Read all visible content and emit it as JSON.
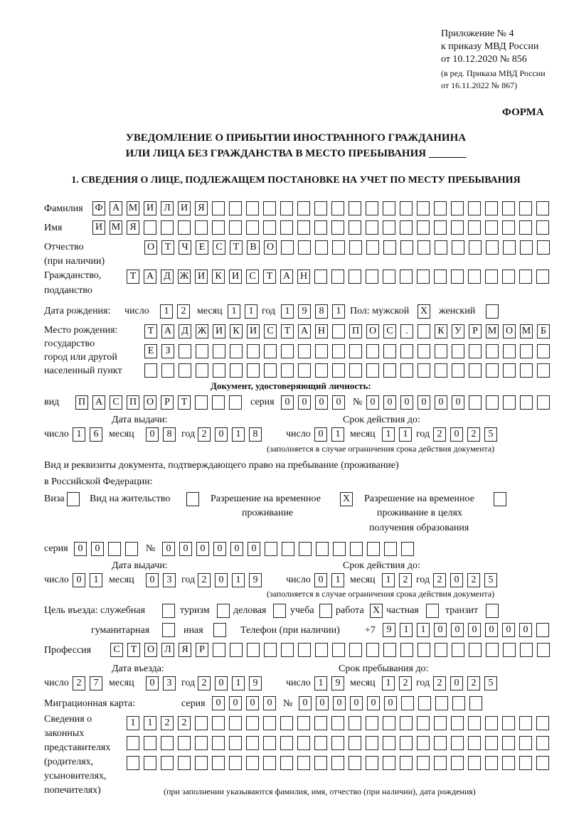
{
  "header": {
    "appendix": "Приложение № 4",
    "order": "к приказу МВД России",
    "order_date": "от 10.12.2020 № 856",
    "edition": "(в ред. Приказа МВД России",
    "edition_date": "от 16.11.2022 № 867)",
    "form": "ФОРМА",
    "title1": "УВЕДОМЛЕНИЕ О ПРИБЫТИИ ИНОСТРАННОГО ГРАЖДАНИНА",
    "title2": "ИЛИ ЛИЦА БЕЗ ГРАЖДАНСТВА В МЕСТО ПРЕБЫВАНИЯ _______",
    "section1": "1. СВЕДЕНИЯ О ЛИЦЕ, ПОДЛЕЖАЩЕМ ПОСТАНОВКЕ НА УЧЕТ ПО МЕСТУ ПРЕБЫВАНИЯ"
  },
  "labels": {
    "surname": "Фамилия",
    "name": "Имя",
    "patronymic": "Отчество",
    "patronymic2": "(при наличии)",
    "citizenship": "Гражданство,",
    "citizenship2": "подданство",
    "birth_date": "Дата рождения:",
    "day": "число",
    "month": "месяц",
    "year": "год",
    "sex_male": "Пол: мужской",
    "sex_female": "женский",
    "birth_place1": "Место рождения:",
    "birth_place2": "государство",
    "birth_place3": "город или другой",
    "birth_place4": "населенный пункт",
    "id_doc": "Документ, удостоверяющий личность:",
    "kind": "вид",
    "series": "серия",
    "number": "№",
    "issue_date": "Дата выдачи:",
    "valid_until": "Срок действия до:",
    "valid_note": "(заполняется в случае ограничения срока действия документа)",
    "stay_doc1": "Вид и реквизиты документа, подтверждающего право на пребывание (проживание)",
    "stay_doc2": "в Российской Федерации:",
    "visa": "Виза",
    "residence": "Вид на жительство",
    "temp1": "Разрешение на временное",
    "temp2": "проживание",
    "edu1": "Разрешение на временное",
    "edu2": "проживание в целях",
    "edu3": "получения образования",
    "purpose": "Цель въезда: служебная",
    "tourism": "туризм",
    "business": "деловая",
    "study": "учеба",
    "work": "работа",
    "private": "частная",
    "transit": "транзит",
    "humanitarian": "гуманитарная",
    "other": "иная",
    "phone": "Телефон (при наличии)",
    "phone_prefix": "+7",
    "profession": "Профессия",
    "entry_date": "Дата въезда:",
    "stay_until": "Срок пребывания до:",
    "migration_card": "Миграционная карта:",
    "reps1": "Сведения о",
    "reps2": "законных",
    "reps3": "представителях",
    "reps4": "(родителях,",
    "reps5": "усыновителях,",
    "reps6": "попечителях)",
    "reps_note": "(при заполнении указываются фамилия, имя, отчество (при наличии), дата рождения)"
  },
  "fields": {
    "surname": [
      "Ф",
      "А",
      "М",
      "И",
      "Л",
      "И",
      "Я",
      "",
      "",
      "",
      "",
      "",
      "",
      "",
      "",
      "",
      "",
      "",
      "",
      "",
      "",
      "",
      "",
      "",
      "",
      "",
      ""
    ],
    "name": [
      "И",
      "М",
      "Я",
      "",
      "",
      "",
      "",
      "",
      "",
      "",
      "",
      "",
      "",
      "",
      "",
      "",
      "",
      "",
      "",
      "",
      "",
      "",
      "",
      "",
      "",
      "",
      ""
    ],
    "patronymic": [
      "О",
      "Т",
      "Ч",
      "Е",
      "С",
      "Т",
      "В",
      "О",
      "",
      "",
      "",
      "",
      "",
      "",
      "",
      "",
      "",
      "",
      "",
      "",
      "",
      "",
      "",
      ""
    ],
    "citizenship": [
      "Т",
      "А",
      "Д",
      "Ж",
      "И",
      "К",
      "И",
      "С",
      "Т",
      "А",
      "Н",
      "",
      "",
      "",
      "",
      "",
      "",
      "",
      "",
      "",
      "",
      "",
      "",
      "",
      ""
    ],
    "birth_day": [
      "1",
      "2"
    ],
    "birth_month": [
      "1",
      "1"
    ],
    "birth_year": [
      "1",
      "9",
      "8",
      "1"
    ],
    "sex_male": [
      "X"
    ],
    "sex_female": [
      ""
    ],
    "birth_place_1": [
      "Т",
      "А",
      "Д",
      "Ж",
      "И",
      "К",
      "И",
      "С",
      "Т",
      "А",
      "Н",
      "",
      "П",
      "О",
      "С",
      ".",
      "",
      "К",
      "У",
      "Р",
      "М",
      "О",
      "М",
      "Б"
    ],
    "birth_place_2": [
      "Е",
      "З",
      "",
      "",
      "",
      "",
      "",
      "",
      "",
      "",
      "",
      "",
      "",
      "",
      "",
      "",
      "",
      "",
      "",
      "",
      "",
      "",
      "",
      ""
    ],
    "birth_place_3": [
      "",
      "",
      "",
      "",
      "",
      "",
      "",
      "",
      "",
      "",
      "",
      "",
      "",
      "",
      "",
      "",
      "",
      "",
      "",
      "",
      "",
      "",
      "",
      ""
    ],
    "id_kind": [
      "П",
      "А",
      "С",
      "П",
      "О",
      "Р",
      "Т",
      "",
      "",
      ""
    ],
    "id_series": [
      "0",
      "0",
      "0",
      "0"
    ],
    "id_number": [
      "0",
      "0",
      "0",
      "0",
      "0",
      "0",
      "",
      "",
      "",
      "",
      ""
    ],
    "id_issue_day": [
      "1",
      "6"
    ],
    "id_issue_month": [
      "0",
      "8"
    ],
    "id_issue_year": [
      "2",
      "0",
      "1",
      "8"
    ],
    "id_valid_day": [
      "0",
      "1"
    ],
    "id_valid_month": [
      "1",
      "1"
    ],
    "id_valid_year": [
      "2",
      "0",
      "2",
      "5"
    ],
    "visa": [
      ""
    ],
    "residence": [
      ""
    ],
    "temp_permit": [
      "X"
    ],
    "edu_permit": [
      ""
    ],
    "stay_series": [
      "0",
      "0",
      "",
      ""
    ],
    "stay_number": [
      "0",
      "0",
      "0",
      "0",
      "0",
      "0",
      "",
      "",
      "",
      "",
      "",
      "",
      "",
      "",
      ""
    ],
    "stay_issue_day": [
      "0",
      "1"
    ],
    "stay_issue_month": [
      "0",
      "3"
    ],
    "stay_issue_year": [
      "2",
      "0",
      "1",
      "9"
    ],
    "stay_valid_day": [
      "0",
      "1"
    ],
    "stay_valid_month": [
      "1",
      "2"
    ],
    "stay_valid_year": [
      "2",
      "0",
      "2",
      "5"
    ],
    "p_official": [
      ""
    ],
    "p_tourism": [
      ""
    ],
    "p_business": [
      ""
    ],
    "p_study": [
      ""
    ],
    "p_work": [
      "X"
    ],
    "p_private": [
      ""
    ],
    "p_transit": [
      ""
    ],
    "p_humanitarian": [
      ""
    ],
    "p_other": [
      ""
    ],
    "phone": [
      "9",
      "1",
      "1",
      "0",
      "0",
      "0",
      "0",
      "0",
      "0",
      ""
    ],
    "profession": [
      "С",
      "Т",
      "О",
      "Л",
      "Я",
      "Р",
      "",
      "",
      "",
      "",
      "",
      "",
      "",
      "",
      "",
      "",
      "",
      "",
      "",
      "",
      "",
      "",
      "",
      "",
      "",
      ""
    ],
    "entry_day": [
      "2",
      "7"
    ],
    "entry_month": [
      "0",
      "3"
    ],
    "entry_year": [
      "2",
      "0",
      "1",
      "9"
    ],
    "until_day": [
      "1",
      "9"
    ],
    "until_month": [
      "1",
      "2"
    ],
    "until_year": [
      "2",
      "0",
      "2",
      "5"
    ],
    "mc_series": [
      "0",
      "0",
      "0",
      "0"
    ],
    "mc_number": [
      "0",
      "0",
      "0",
      "0",
      "0",
      "0",
      "",
      "",
      "",
      "",
      ""
    ],
    "reps_1": [
      "1",
      "1",
      "2",
      "2",
      "",
      "",
      "",
      "",
      "",
      "",
      "",
      "",
      "",
      "",
      "",
      "",
      "",
      "",
      "",
      "",
      "",
      "",
      "",
      "",
      ""
    ],
    "reps_2": [
      "",
      "",
      "",
      "",
      "",
      "",
      "",
      "",
      "",
      "",
      "",
      "",
      "",
      "",
      "",
      "",
      "",
      "",
      "",
      "",
      "",
      "",
      "",
      "",
      ""
    ],
    "reps_3": [
      "",
      "",
      "",
      "",
      "",
      "",
      "",
      "",
      "",
      "",
      "",
      "",
      "",
      "",
      "",
      "",
      "",
      "",
      "",
      "",
      "",
      "",
      "",
      "",
      ""
    ]
  }
}
